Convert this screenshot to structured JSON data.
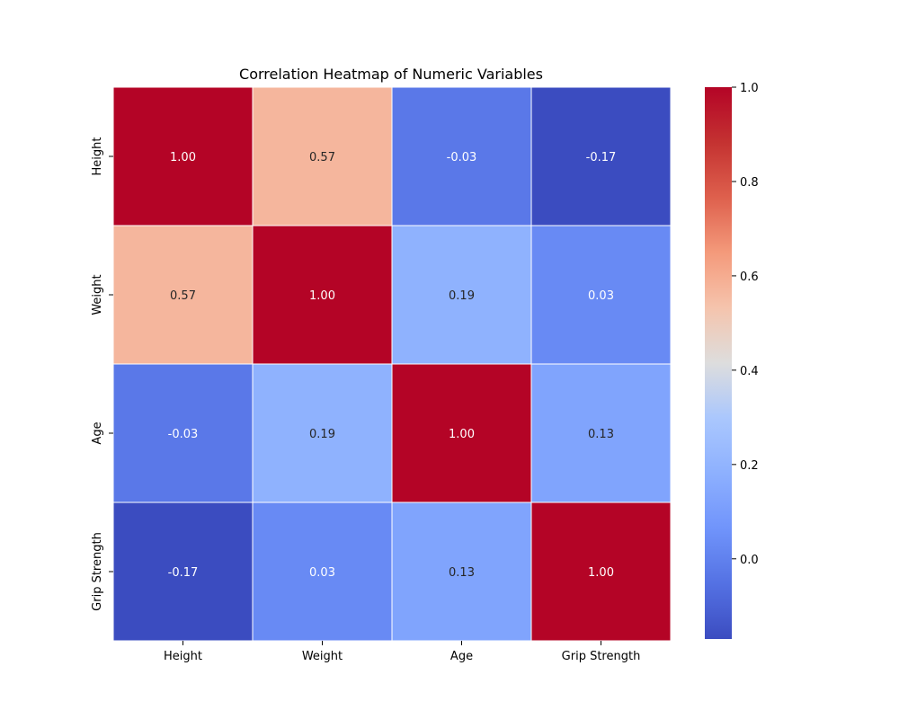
{
  "chart_data": {
    "type": "heatmap",
    "title": "Correlation Heatmap of Numeric Variables",
    "xlabel": "",
    "ylabel": "",
    "x_categories": [
      "Height",
      "Weight",
      "Age",
      "Grip Strength"
    ],
    "y_categories": [
      "Height",
      "Weight",
      "Age",
      "Grip Strength"
    ],
    "values": [
      [
        1.0,
        0.57,
        -0.03,
        -0.17
      ],
      [
        0.57,
        1.0,
        0.19,
        0.03
      ],
      [
        -0.03,
        0.19,
        1.0,
        0.13
      ],
      [
        -0.17,
        0.03,
        0.13,
        1.0
      ]
    ],
    "cell_labels": [
      [
        "1.00",
        "0.57",
        "-0.03",
        "-0.17"
      ],
      [
        "0.57",
        "1.00",
        "0.19",
        "0.03"
      ],
      [
        "-0.03",
        "0.19",
        "1.00",
        "0.13"
      ],
      [
        "-0.17",
        "0.03",
        "0.13",
        "1.00"
      ]
    ],
    "colormap": "coolwarm",
    "colorbar": {
      "range": [
        -0.17,
        1.0
      ],
      "ticks": [
        0.0,
        0.2,
        0.4,
        0.6,
        0.8,
        1.0
      ],
      "tick_labels": [
        "0.0",
        "0.2",
        "0.4",
        "0.6",
        "0.8",
        "1.0"
      ]
    },
    "grid": false,
    "legend": "colorbar-right"
  }
}
